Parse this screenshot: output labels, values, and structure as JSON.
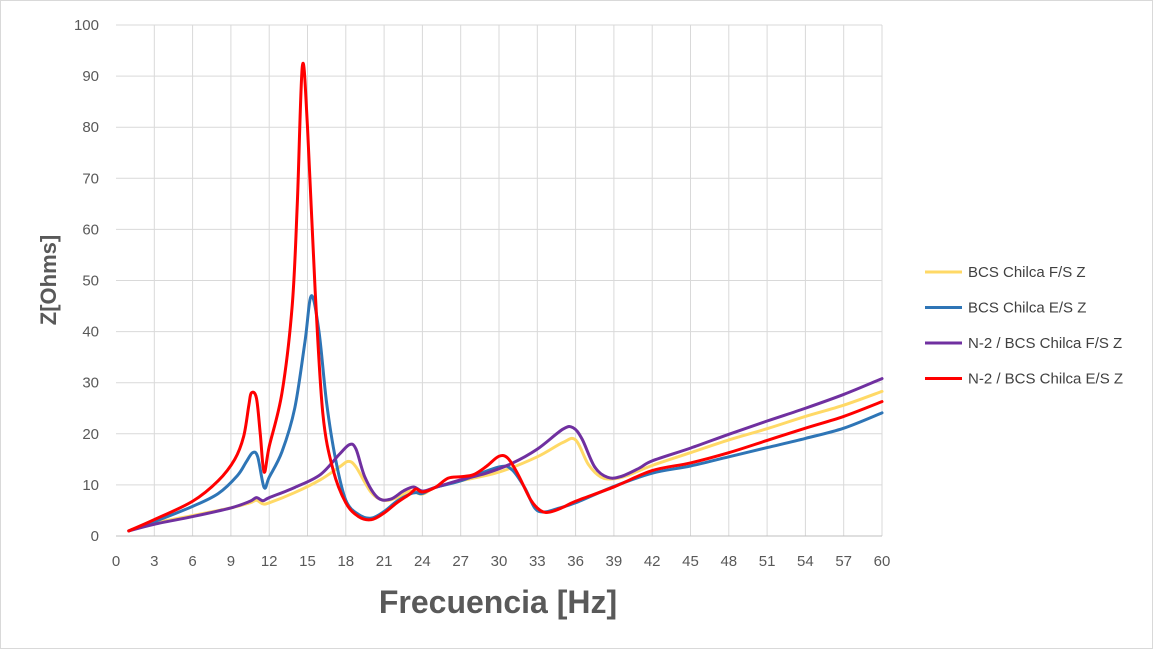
{
  "chart_data": {
    "type": "line",
    "title": "",
    "xlabel": "Frecuencia [Hz]",
    "ylabel": "Z[Ohms]",
    "xlim": [
      0,
      60
    ],
    "ylim": [
      0,
      100
    ],
    "x_ticks": [
      "0",
      "3",
      "6",
      "9",
      "12",
      "15",
      "18",
      "21",
      "24",
      "27",
      "30",
      "33",
      "36",
      "39",
      "42",
      "45",
      "48",
      "51",
      "54",
      "57",
      "60"
    ],
    "y_ticks": [
      "0",
      "10",
      "20",
      "30",
      "40",
      "50",
      "60",
      "70",
      "80",
      "90",
      "100"
    ],
    "grid": true,
    "legend_position": "right",
    "series": [
      {
        "name": "BCS Chilca F/S Z",
        "color": "#ffd966",
        "points": [
          [
            1,
            1
          ],
          [
            3,
            2.5
          ],
          [
            6,
            4
          ],
          [
            9,
            5.5
          ],
          [
            10.5,
            6.5
          ],
          [
            11,
            7
          ],
          [
            11.5,
            6.3
          ],
          [
            12,
            6.5
          ],
          [
            14,
            8.5
          ],
          [
            16,
            11
          ],
          [
            17.5,
            13.5
          ],
          [
            18.2,
            14.6
          ],
          [
            18.8,
            13.5
          ],
          [
            20,
            8.5
          ],
          [
            21,
            7
          ],
          [
            22,
            7.5
          ],
          [
            23,
            8.8
          ],
          [
            24,
            8.2
          ],
          [
            25,
            9.5
          ],
          [
            27,
            10.8
          ],
          [
            30,
            12.5
          ],
          [
            33,
            15.5
          ],
          [
            35,
            18.3
          ],
          [
            36,
            18.8
          ],
          [
            37,
            14
          ],
          [
            38,
            11.5
          ],
          [
            39,
            11.2
          ],
          [
            40,
            11.8
          ],
          [
            42,
            13.8
          ],
          [
            45,
            16.3
          ],
          [
            48,
            18.8
          ],
          [
            51,
            21
          ],
          [
            54,
            23.4
          ],
          [
            57,
            25.6
          ],
          [
            60,
            28.3
          ]
        ]
      },
      {
        "name": "BCS Chilca E/S Z",
        "color": "#2e75b6",
        "points": [
          [
            1,
            1
          ],
          [
            3,
            2.8
          ],
          [
            6,
            5.8
          ],
          [
            8,
            8.3
          ],
          [
            9.5,
            11.8
          ],
          [
            10.2,
            14.5
          ],
          [
            10.7,
            16.3
          ],
          [
            11.1,
            15.5
          ],
          [
            11.6,
            9.5
          ],
          [
            12,
            11.5
          ],
          [
            13,
            16.5
          ],
          [
            14,
            25
          ],
          [
            14.8,
            38
          ],
          [
            15.3,
            47
          ],
          [
            15.9,
            40
          ],
          [
            16.5,
            26
          ],
          [
            17.2,
            15
          ],
          [
            18,
            7
          ],
          [
            19,
            4.2
          ],
          [
            20,
            3.5
          ],
          [
            21,
            4.8
          ],
          [
            22,
            6.8
          ],
          [
            23,
            8.2
          ],
          [
            23.5,
            8.5
          ],
          [
            24,
            8.3
          ],
          [
            25,
            9.5
          ],
          [
            27,
            10.8
          ],
          [
            30,
            13.5
          ],
          [
            31,
            13
          ],
          [
            32,
            9.5
          ],
          [
            32.8,
            5.5
          ],
          [
            33.5,
            4.7
          ],
          [
            34.5,
            5.3
          ],
          [
            36,
            6.5
          ],
          [
            39,
            9.7
          ],
          [
            42,
            12.3
          ],
          [
            45,
            13.7
          ],
          [
            48,
            15.5
          ],
          [
            51,
            17.3
          ],
          [
            54,
            19.1
          ],
          [
            57,
            21.1
          ],
          [
            60,
            24.1
          ]
        ]
      },
      {
        "name": "N-2 / BCS Chilca F/S Z",
        "color": "#7030a0",
        "points": [
          [
            1,
            1
          ],
          [
            3,
            2.3
          ],
          [
            6,
            3.8
          ],
          [
            9,
            5.5
          ],
          [
            10.5,
            6.8
          ],
          [
            11,
            7.5
          ],
          [
            11.5,
            6.9
          ],
          [
            12,
            7.5
          ],
          [
            14,
            9.5
          ],
          [
            16,
            12
          ],
          [
            17.5,
            16
          ],
          [
            18.3,
            17.9
          ],
          [
            18.8,
            17
          ],
          [
            19.5,
            11.5
          ],
          [
            20.5,
            7.5
          ],
          [
            21.5,
            7.2
          ],
          [
            22.5,
            8.8
          ],
          [
            23.3,
            9.6
          ],
          [
            24,
            8.8
          ],
          [
            25,
            9.5
          ],
          [
            27,
            11
          ],
          [
            29,
            12.3
          ],
          [
            31,
            14.2
          ],
          [
            33,
            17
          ],
          [
            35,
            20.9
          ],
          [
            35.8,
            21.2
          ],
          [
            36.5,
            19
          ],
          [
            37.5,
            13.5
          ],
          [
            38.5,
            11.5
          ],
          [
            39.5,
            11.6
          ],
          [
            41,
            13.3
          ],
          [
            42,
            14.7
          ],
          [
            45,
            17.2
          ],
          [
            48,
            19.9
          ],
          [
            51,
            22.5
          ],
          [
            54,
            25
          ],
          [
            57,
            27.7
          ],
          [
            60,
            30.8
          ]
        ]
      },
      {
        "name": "N-2 / BCS Chilca E/S Z",
        "color": "#ff0000",
        "points": [
          [
            1,
            1
          ],
          [
            3,
            3.2
          ],
          [
            6,
            6.8
          ],
          [
            8,
            10.8
          ],
          [
            9.3,
            15
          ],
          [
            10,
            19.5
          ],
          [
            10.4,
            25.5
          ],
          [
            10.6,
            28
          ],
          [
            11,
            27
          ],
          [
            11.3,
            20
          ],
          [
            11.6,
            12.5
          ],
          [
            12,
            17.5
          ],
          [
            13,
            28
          ],
          [
            13.8,
            45
          ],
          [
            14.2,
            65
          ],
          [
            14.6,
            92
          ],
          [
            15,
            80
          ],
          [
            15.6,
            48
          ],
          [
            16.2,
            24
          ],
          [
            17,
            13
          ],
          [
            18,
            6.5
          ],
          [
            19,
            3.8
          ],
          [
            20,
            3.2
          ],
          [
            21,
            4.5
          ],
          [
            22,
            6.5
          ],
          [
            23,
            8.2
          ],
          [
            23.5,
            9.2
          ],
          [
            24,
            8.6
          ],
          [
            25,
            9.5
          ],
          [
            26,
            11.3
          ],
          [
            27,
            11.6
          ],
          [
            28,
            12
          ],
          [
            29,
            13.6
          ],
          [
            30,
            15.6
          ],
          [
            30.7,
            15.2
          ],
          [
            31.5,
            12
          ],
          [
            32.5,
            7
          ],
          [
            33.3,
            4.9
          ],
          [
            34,
            4.7
          ],
          [
            35,
            5.6
          ],
          [
            36,
            6.8
          ],
          [
            39,
            9.6
          ],
          [
            42,
            12.8
          ],
          [
            45,
            14.3
          ],
          [
            48,
            16.3
          ],
          [
            51,
            18.7
          ],
          [
            54,
            21.1
          ],
          [
            57,
            23.4
          ],
          [
            60,
            26.3
          ]
        ]
      }
    ]
  }
}
